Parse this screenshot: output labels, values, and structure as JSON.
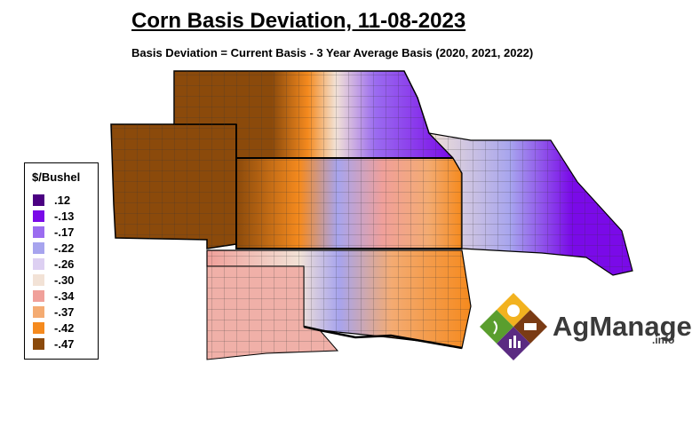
{
  "header": {
    "title": "Corn Basis Deviation, 11-08-2023",
    "subtitle": "Basis Deviation = Current Basis - 3 Year Average Basis (2020, 2021, 2022)"
  },
  "legend": {
    "title": "$/Bushel",
    "items": [
      {
        "label": ".12",
        "color": "#4b0082"
      },
      {
        "label": "-.13",
        "color": "#7a0ae8"
      },
      {
        "label": "-.17",
        "color": "#9b6cf0"
      },
      {
        "label": "-.22",
        "color": "#a7a4ee"
      },
      {
        "label": "-.26",
        "color": "#ddd0f2"
      },
      {
        "label": "-.30",
        "color": "#f2e2d6"
      },
      {
        "label": "-.34",
        "color": "#f0a09a"
      },
      {
        "label": "-.37",
        "color": "#f4ab72"
      },
      {
        "label": "-.42",
        "color": "#f58a1e"
      },
      {
        "label": "-.47",
        "color": "#8b4a0b"
      }
    ]
  },
  "logo": {
    "text": "AgManager",
    "suffix": ".info"
  }
}
